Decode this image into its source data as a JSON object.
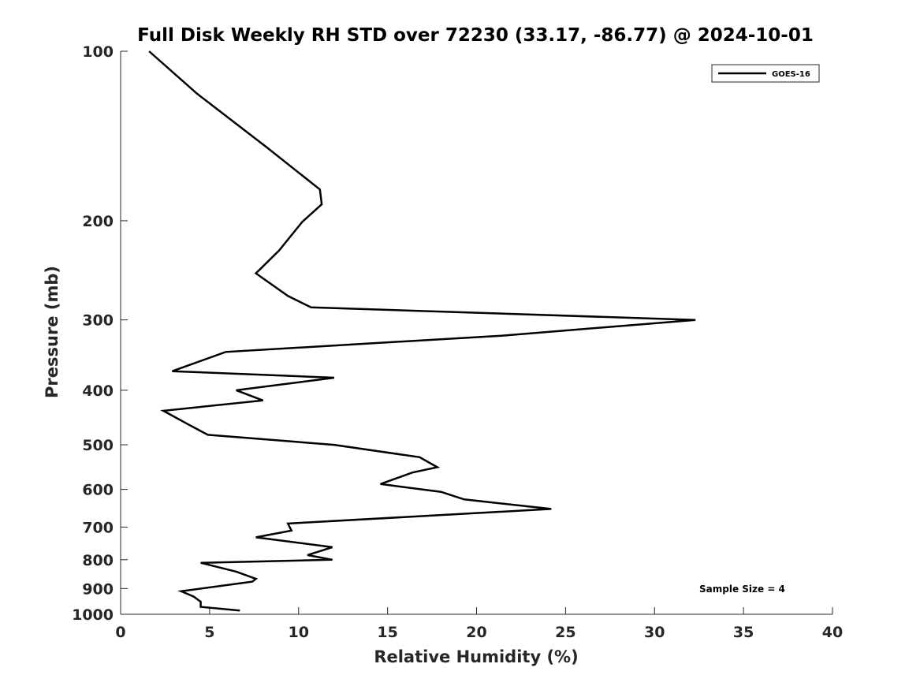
{
  "chart_data": {
    "type": "line",
    "title": "Full Disk Weekly RH STD over 72230 (33.17, -86.77) @ 2024-10-01",
    "xlabel": "Relative Humidity (%)",
    "ylabel": "Pressure (mb)",
    "xlim": [
      0,
      40
    ],
    "ylim": [
      100,
      1000
    ],
    "yscale": "log",
    "yaxis_reversed": true,
    "xticks": [
      0,
      5,
      10,
      15,
      20,
      25,
      30,
      35,
      40
    ],
    "yticks": [
      100,
      200,
      300,
      400,
      500,
      600,
      700,
      800,
      900,
      1000
    ],
    "grid": false,
    "legend_position": "top-right",
    "annotation": "Sample Size = 4",
    "series": [
      {
        "name": "GOES-16",
        "color": "#000000",
        "x": [
          1.6,
          4.3,
          8.2,
          11.2,
          11.3,
          10.2,
          8.9,
          7.6,
          9.4,
          10.7,
          32.3,
          21.4,
          5.9,
          2.9,
          12.0,
          6.5,
          8.0,
          2.4,
          3.8,
          4.9,
          12.0,
          16.8,
          17.8,
          16.4,
          14.6,
          18.0,
          19.3,
          24.2,
          9.4,
          9.6,
          7.6,
          11.9,
          10.5,
          11.9,
          4.5,
          6.5,
          7.6,
          7.4,
          3.4,
          4.1,
          4.5,
          4.5,
          6.7
        ],
        "y": [
          100,
          119,
          148,
          176,
          187,
          201,
          226,
          248,
          272,
          285,
          300,
          320,
          342,
          370,
          380,
          400,
          417,
          435,
          460,
          480,
          500,
          526,
          548,
          560,
          587,
          606,
          625,
          650,
          690,
          710,
          730,
          760,
          785,
          800,
          810,
          840,
          865,
          875,
          910,
          930,
          950,
          970,
          985
        ]
      }
    ]
  }
}
